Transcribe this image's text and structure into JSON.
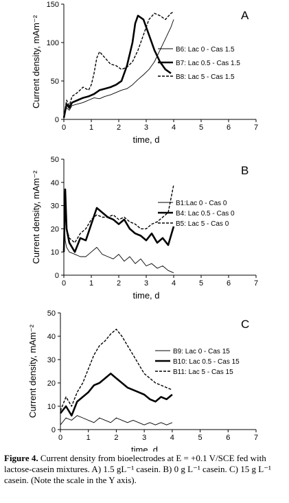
{
  "figure": {
    "caption_label": "Figure 4.",
    "caption_text": " Current density from bioelectrodes at E = +0.1 V/SCE fed with lactose-casein mixtures. A) 1.5 gL⁻¹ casein. B) 0 g L⁻¹ casein. C) 15 g L⁻¹ casein. (Note the scale in the Y axis)."
  },
  "chart_data": [
    {
      "type": "line",
      "panel_label": "A",
      "xlabel": "time, d",
      "ylabel": "Current density, mAm⁻²",
      "xlim": [
        0,
        7
      ],
      "ylim": [
        0,
        150
      ],
      "xticks": [
        0,
        1,
        2,
        3,
        4,
        5,
        6,
        7
      ],
      "yticks": [
        0,
        50,
        100,
        150
      ],
      "legend_position": "right",
      "series": [
        {
          "name": "B6: Lac 0 - Cas 1.5",
          "style": "thin",
          "x": [
            0,
            0.1,
            0.2,
            0.3,
            0.5,
            0.7,
            0.9,
            1.1,
            1.3,
            1.5,
            1.7,
            1.9,
            2.1,
            2.3,
            2.5,
            2.7,
            2.9,
            3.1,
            3.3,
            3.5,
            3.7,
            3.9,
            4.0
          ],
          "y": [
            5,
            15,
            12,
            18,
            20,
            22,
            25,
            28,
            27,
            30,
            32,
            35,
            38,
            40,
            45,
            52,
            58,
            65,
            75,
            90,
            105,
            120,
            130
          ]
        },
        {
          "name": "B7: Lac 0.5 - Cas 1.5",
          "style": "thick",
          "x": [
            0,
            0.1,
            0.2,
            0.3,
            0.5,
            0.7,
            0.9,
            1.1,
            1.3,
            1.5,
            1.7,
            1.9,
            2.1,
            2.3,
            2.5,
            2.6,
            2.7,
            2.9,
            3.1,
            3.3,
            3.5,
            3.7,
            3.9
          ],
          "y": [
            2,
            20,
            15,
            22,
            25,
            28,
            30,
            33,
            38,
            40,
            42,
            45,
            50,
            70,
            100,
            125,
            135,
            130,
            110,
            90,
            75,
            65,
            60
          ]
        },
        {
          "name": "B8: Lac 5 - Cas 1.5",
          "style": "dashed",
          "x": [
            0,
            0.1,
            0.2,
            0.3,
            0.5,
            0.7,
            0.9,
            1.0,
            1.1,
            1.2,
            1.3,
            1.5,
            1.7,
            1.9,
            2.1,
            2.3,
            2.5,
            2.7,
            2.9,
            3.1,
            3.3,
            3.5,
            3.7,
            3.9,
            4.0
          ],
          "y": [
            3,
            25,
            18,
            30,
            35,
            42,
            38,
            45,
            60,
            80,
            88,
            80,
            72,
            70,
            65,
            68,
            75,
            90,
            110,
            130,
            138,
            135,
            130,
            138,
            140
          ]
        }
      ]
    },
    {
      "type": "line",
      "panel_label": "B",
      "xlabel": "time, d",
      "ylabel": "Current density, mAm⁻²",
      "xlim": [
        0,
        7
      ],
      "ylim": [
        0,
        50
      ],
      "xticks": [
        0,
        1,
        2,
        3,
        4,
        5,
        6,
        7
      ],
      "yticks": [
        0,
        10,
        20,
        30,
        40,
        50
      ],
      "legend_position": "right",
      "series": [
        {
          "name": "B1:Lac 0 - Cas 0",
          "style": "thin",
          "x": [
            0,
            0.05,
            0.1,
            0.2,
            0.4,
            0.6,
            0.8,
            1.0,
            1.2,
            1.4,
            1.6,
            1.8,
            2.0,
            2.2,
            2.4,
            2.6,
            2.8,
            3.0,
            3.2,
            3.4,
            3.6,
            3.8,
            4.0
          ],
          "y": [
            30,
            15,
            12,
            10,
            9,
            8,
            8,
            10,
            12,
            9,
            8,
            7,
            9,
            6,
            8,
            5,
            7,
            4,
            5,
            3,
            4,
            2,
            1
          ]
        },
        {
          "name": "B4: Lac 0.5 - Cas 0",
          "style": "thick",
          "x": [
            0,
            0.05,
            0.1,
            0.2,
            0.4,
            0.6,
            0.8,
            1.0,
            1.2,
            1.4,
            1.6,
            1.8,
            2.0,
            2.2,
            2.4,
            2.6,
            2.8,
            3.0,
            3.2,
            3.4,
            3.6,
            3.8,
            4.0
          ],
          "y": [
            10,
            37,
            20,
            14,
            10,
            16,
            15,
            22,
            29,
            27,
            25,
            24,
            22,
            24,
            20,
            18,
            17,
            15,
            18,
            14,
            16,
            13,
            21
          ]
        },
        {
          "name": "B5: Lac 5 - Cas 0",
          "style": "dashed",
          "x": [
            0,
            0.05,
            0.1,
            0.2,
            0.4,
            0.6,
            0.8,
            1.0,
            1.2,
            1.4,
            1.6,
            1.8,
            2.0,
            2.2,
            2.4,
            2.6,
            2.8,
            3.0,
            3.2,
            3.4,
            3.6,
            3.8,
            4.0
          ],
          "y": [
            12,
            30,
            20,
            16,
            14,
            18,
            20,
            24,
            26,
            25,
            25,
            26,
            24,
            25,
            23,
            22,
            20,
            20,
            22,
            23,
            25,
            27,
            39
          ]
        }
      ]
    },
    {
      "type": "line",
      "panel_label": "C",
      "xlabel": "time, d",
      "ylabel": "Current density, mAm⁻²",
      "xlim": [
        0,
        7
      ],
      "ylim": [
        0,
        50
      ],
      "xticks": [
        0,
        1,
        2,
        3,
        4,
        5,
        6,
        7
      ],
      "yticks": [
        0,
        10,
        20,
        30,
        40,
        50
      ],
      "legend_position": "right",
      "series": [
        {
          "name": "B9: Lac 0 - Cas 15",
          "style": "thin",
          "x": [
            0,
            0.2,
            0.4,
            0.6,
            0.8,
            1.0,
            1.2,
            1.4,
            1.6,
            1.8,
            2.0,
            2.2,
            2.4,
            2.6,
            2.8,
            3.0,
            3.2,
            3.4,
            3.6,
            3.8,
            4.0
          ],
          "y": [
            2,
            5,
            4,
            6,
            5,
            4,
            3,
            5,
            4,
            3,
            5,
            4,
            3,
            4,
            3,
            2,
            3,
            2,
            3,
            2,
            3
          ]
        },
        {
          "name": "B10: Lac 0.5 - Cas 15",
          "style": "thick",
          "x": [
            0,
            0.2,
            0.4,
            0.6,
            0.8,
            1.0,
            1.2,
            1.4,
            1.6,
            1.8,
            2.0,
            2.2,
            2.4,
            2.6,
            2.8,
            3.0,
            3.2,
            3.4,
            3.6,
            3.8,
            4.0
          ],
          "y": [
            7,
            10,
            6,
            12,
            14,
            16,
            19,
            20,
            22,
            24,
            22,
            20,
            18,
            17,
            16,
            15,
            13,
            12,
            14,
            13,
            15
          ]
        },
        {
          "name": "B11: Lac 5 - Cas 15",
          "style": "dashed",
          "x": [
            0,
            0.2,
            0.4,
            0.6,
            0.8,
            1.0,
            1.2,
            1.4,
            1.6,
            1.8,
            2.0,
            2.2,
            2.4,
            2.6,
            2.8,
            3.0,
            3.2,
            3.4,
            3.6,
            3.8,
            4.0
          ],
          "y": [
            8,
            14,
            10,
            16,
            20,
            26,
            32,
            36,
            38,
            41,
            43,
            40,
            36,
            32,
            28,
            24,
            22,
            20,
            19,
            18,
            17
          ]
        }
      ]
    }
  ]
}
